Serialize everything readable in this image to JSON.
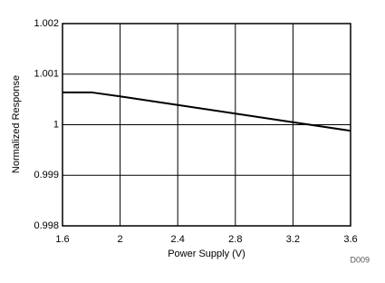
{
  "chart_data": {
    "type": "line",
    "x_label": "Power Supply (V)",
    "y_label": "Normalized Response",
    "annotation": "D009",
    "x": [
      1.6,
      1.8,
      2.0,
      2.4,
      2.8,
      3.2,
      3.6
    ],
    "values": [
      1.00064,
      1.00064,
      1.00056,
      1.00039,
      1.00022,
      1.00005,
      0.99988
    ],
    "color": "#000000",
    "xlim": [
      1.6,
      3.6
    ],
    "xticks": [
      1.6,
      2,
      2.4,
      2.8,
      3.2,
      3.6
    ],
    "ylim": [
      0.998,
      1.002
    ],
    "yticks": [
      0.998,
      0.999,
      1,
      1.001,
      1.002
    ],
    "grid": true
  }
}
